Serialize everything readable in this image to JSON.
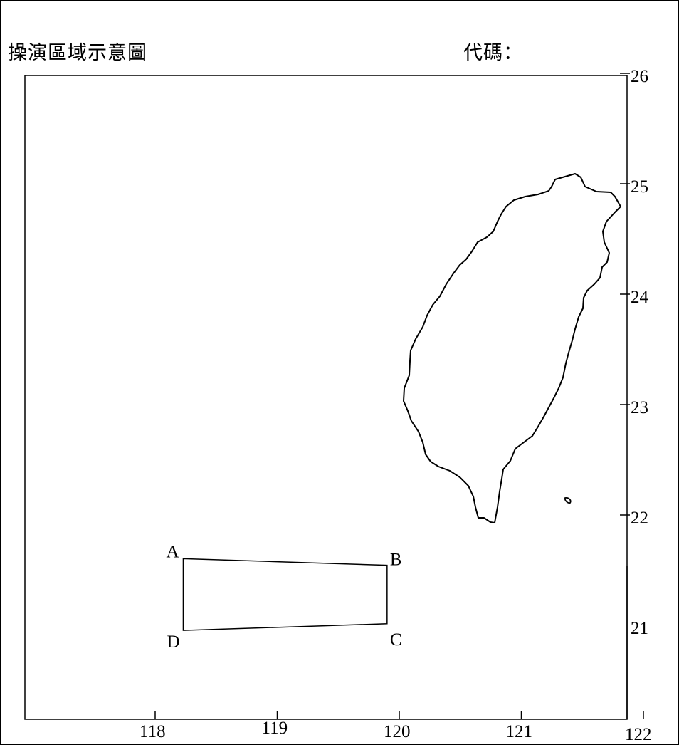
{
  "header": {
    "title": "操演區域示意圖",
    "code_label": "代碼："
  },
  "map": {
    "lon_ticks": [
      {
        "value": 118,
        "label": "118"
      },
      {
        "value": 119,
        "label": "119"
      },
      {
        "value": 120,
        "label": "120"
      },
      {
        "value": 121,
        "label": "121"
      },
      {
        "value": 122,
        "label": "122"
      }
    ],
    "lat_ticks": [
      {
        "value": 26,
        "label": "26"
      },
      {
        "value": 25,
        "label": "25"
      },
      {
        "value": 24,
        "label": "24"
      },
      {
        "value": 23,
        "label": "23"
      },
      {
        "value": 22,
        "label": "22"
      },
      {
        "value": 21,
        "label": "21"
      }
    ],
    "exercise_area": {
      "points": [
        {
          "label": "A",
          "lon": 118.23,
          "lat": 21.63
        },
        {
          "label": "B",
          "lon": 119.9,
          "lat": 21.57
        },
        {
          "label": "C",
          "lon": 119.9,
          "lat": 21.04
        },
        {
          "label": "D",
          "lon": 118.23,
          "lat": 20.98
        }
      ]
    },
    "line_color": "#000000"
  }
}
